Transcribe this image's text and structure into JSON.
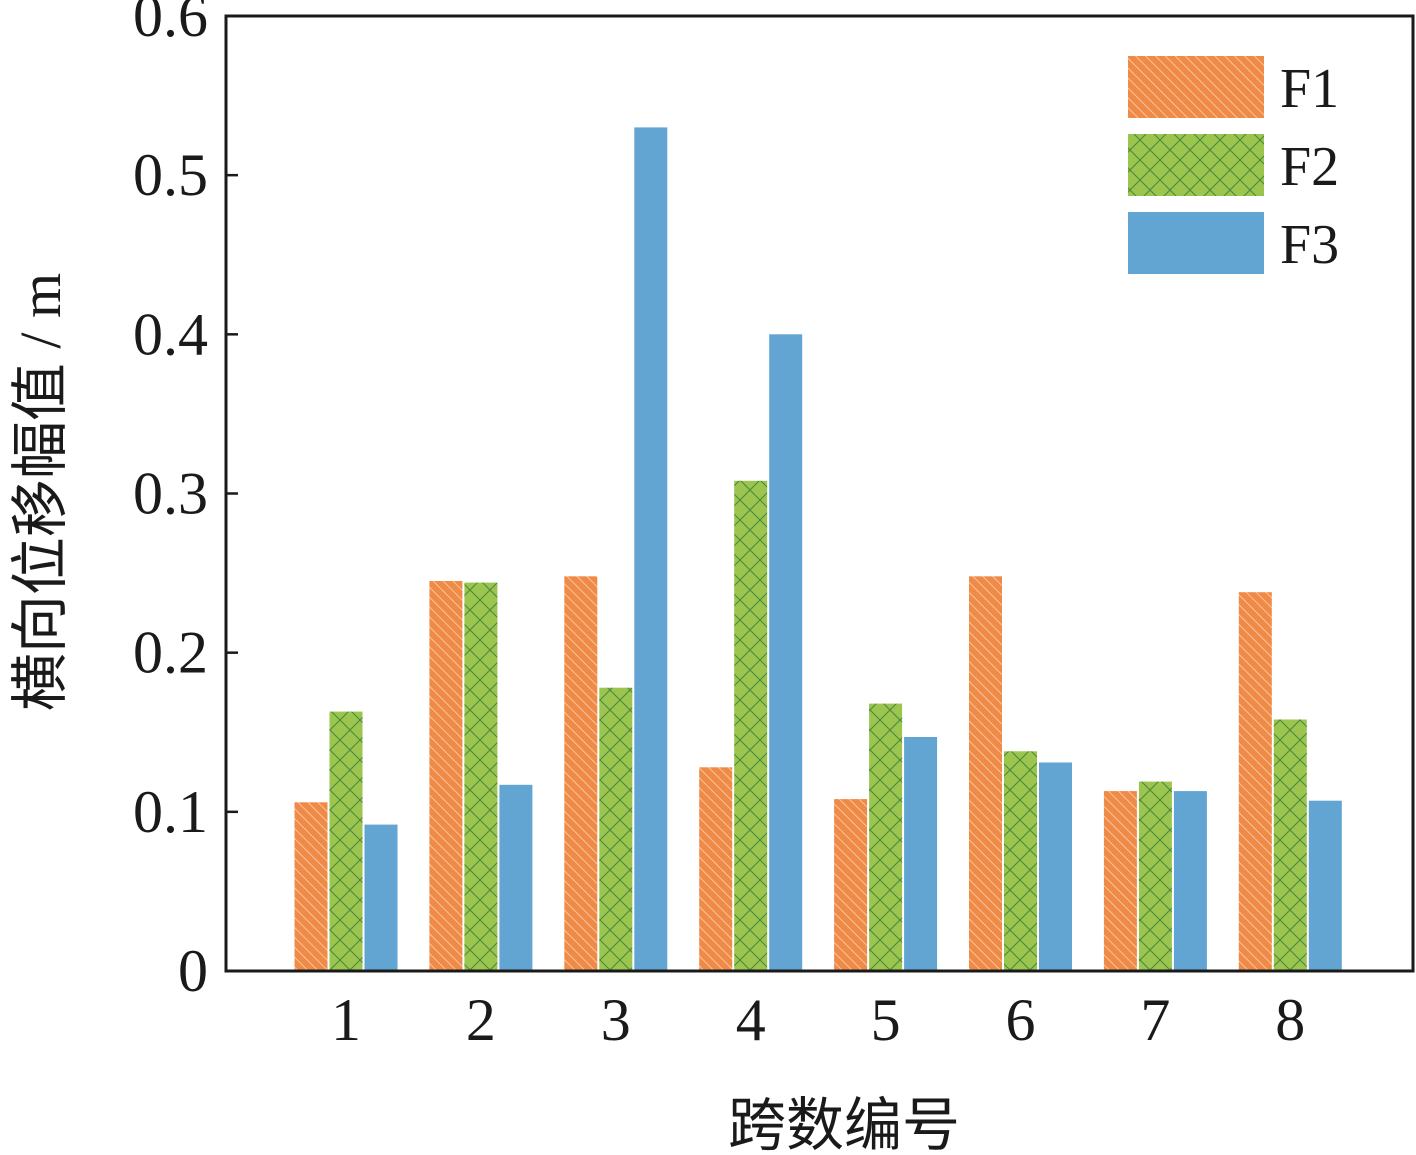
{
  "chart_data": {
    "type": "bar",
    "xlabel": "跨数编号",
    "ylabel": "横向位移幅值 / m",
    "ylim": [
      0,
      0.6
    ],
    "yticks": [
      "0",
      "0.1",
      "0.2",
      "0.3",
      "0.4",
      "0.5",
      "0.6"
    ],
    "categories": [
      "1",
      "2",
      "3",
      "4",
      "5",
      "6",
      "7",
      "8"
    ],
    "legend_position": "top-right",
    "grid": false,
    "series": [
      {
        "name": "F1",
        "color": "#ef8a47",
        "pattern": "diagonal-hatch",
        "values": [
          0.106,
          0.245,
          0.248,
          0.128,
          0.108,
          0.248,
          0.113,
          0.238
        ]
      },
      {
        "name": "F2",
        "color": "#9cc54f",
        "pattern": "cross-hatch",
        "values": [
          0.163,
          0.244,
          0.178,
          0.308,
          0.168,
          0.138,
          0.119,
          0.158
        ]
      },
      {
        "name": "F3",
        "color": "#62a5d3",
        "pattern": "solid",
        "values": [
          0.092,
          0.117,
          0.53,
          0.4,
          0.147,
          0.131,
          0.113,
          0.107
        ]
      }
    ]
  }
}
